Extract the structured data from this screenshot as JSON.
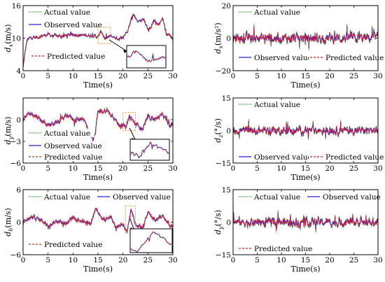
{
  "figure": {
    "legend_labels": {
      "actual": "Actual value",
      "observed": "Observed value",
      "predicted": "Predicted value"
    },
    "colors": {
      "actual": "#2e9a2e",
      "observed": "#2323d6",
      "predicted": "#e32222",
      "predicted_alt": "#b04010",
      "inset_box": "#f0a020",
      "shade": "#f6c6cf"
    }
  },
  "chart_data": [
    {
      "id": "dx",
      "type": "line",
      "ylabel": "d_x(m/s)",
      "xlabel": "Time(s)",
      "xlim": [
        0,
        30
      ],
      "ylim": [
        4,
        16
      ],
      "xticks": [
        0,
        5,
        10,
        15,
        20,
        25,
        30
      ],
      "yticks": [
        4,
        10,
        16
      ],
      "base": [
        [
          0,
          4.6
        ],
        [
          0.4,
          7.5
        ],
        [
          0.8,
          9.6
        ],
        [
          1.5,
          10.1
        ],
        [
          3,
          10.2
        ],
        [
          5,
          10.7
        ],
        [
          6,
          10.4
        ],
        [
          8,
          10.4
        ],
        [
          10,
          10.7
        ],
        [
          12,
          10.5
        ],
        [
          14,
          10.5
        ],
        [
          15,
          10.2
        ],
        [
          15.7,
          11.3
        ],
        [
          16.4,
          9.8
        ],
        [
          17.5,
          10.4
        ],
        [
          19,
          9.9
        ],
        [
          20,
          10.1
        ],
        [
          21,
          11.6
        ],
        [
          22,
          14.5
        ],
        [
          23,
          13.1
        ],
        [
          24.2,
          13.5
        ],
        [
          25.2,
          11.4
        ],
        [
          26.3,
          13.3
        ],
        [
          27,
          12.4
        ],
        [
          28,
          13.6
        ],
        [
          28.7,
          10.5
        ],
        [
          29.4,
          10.9
        ],
        [
          30,
          9.6
        ]
      ],
      "noise": 0.45,
      "inset": {
        "zoom_x": [
          15,
          17.5
        ],
        "zoom_y": [
          9,
          12
        ]
      },
      "shaded": false
    },
    {
      "id": "az",
      "type": "line",
      "ylabel": "d_x(m/s²)",
      "xlabel": "Time(s)",
      "xlim": [
        0,
        30
      ],
      "ylim": [
        -20,
        20
      ],
      "xticks": [
        0,
        5,
        10,
        15,
        20,
        25,
        30
      ],
      "yticks": [
        -20,
        0,
        20
      ],
      "base": [
        [
          0,
          0
        ],
        [
          30,
          0
        ]
      ],
      "noise": 4.5,
      "inset": null,
      "shaded": false
    },
    {
      "id": "dy",
      "type": "line",
      "ylabel": "d_y(m/s)",
      "xlabel": "Time(s)",
      "xlim": [
        0,
        30
      ],
      "ylim": [
        -6,
        3
      ],
      "xticks": [
        0,
        5,
        10,
        15,
        20,
        25,
        30
      ],
      "yticks": [
        -6,
        -3,
        0
      ],
      "base": [
        [
          0,
          0.3
        ],
        [
          1.5,
          0.8
        ],
        [
          3,
          0.2
        ],
        [
          5,
          -0.8
        ],
        [
          7,
          -0.3
        ],
        [
          9,
          0.7
        ],
        [
          10.5,
          -0.2
        ],
        [
          12,
          0.3
        ],
        [
          13,
          -1.3
        ],
        [
          14,
          -2.8
        ],
        [
          14.5,
          -1.5
        ],
        [
          15,
          1.1
        ],
        [
          16.5,
          1.2
        ],
        [
          18,
          0.6
        ],
        [
          19,
          -0.6
        ],
        [
          20.5,
          -1.0
        ],
        [
          21.3,
          0.5
        ],
        [
          22.5,
          -0.6
        ],
        [
          24,
          -1.3
        ],
        [
          25,
          0.4
        ],
        [
          26.5,
          0.1
        ],
        [
          28,
          0.7
        ],
        [
          29.5,
          -1.0
        ],
        [
          30,
          -0.6
        ]
      ],
      "noise": 0.45,
      "inset": {
        "zoom_x": [
          20,
          22.5
        ],
        "zoom_y": [
          -1.5,
          1
        ]
      },
      "shaded": true
    },
    {
      "id": "rz",
      "type": "line",
      "ylabel": "d_z(°/s)",
      "xlabel": "Time(s)",
      "xlim": [
        0,
        30
      ],
      "ylim": [
        -15,
        15
      ],
      "xticks": [
        0,
        5,
        10,
        15,
        20,
        25,
        30
      ],
      "yticks": [
        -15,
        0,
        15
      ],
      "base": [
        [
          0,
          0
        ],
        [
          30,
          0
        ]
      ],
      "noise": 2.8,
      "inset": null,
      "shaded": false
    },
    {
      "id": "dh",
      "type": "line",
      "ylabel": "d_h(m/s)",
      "xlabel": "Time(s)",
      "xlim": [
        0,
        30
      ],
      "ylim": [
        -6,
        6
      ],
      "xticks": [
        0,
        5,
        10,
        15,
        20,
        25,
        30
      ],
      "yticks": [
        -6,
        0,
        6
      ],
      "base": [
        [
          0,
          0.1
        ],
        [
          2,
          1.0
        ],
        [
          4,
          0.2
        ],
        [
          5,
          -0.6
        ],
        [
          7,
          0.3
        ],
        [
          8.5,
          -0.4
        ],
        [
          10,
          0.8
        ],
        [
          12,
          0.2
        ],
        [
          13.5,
          -0.3
        ],
        [
          14.6,
          2.7
        ],
        [
          15.5,
          0.8
        ],
        [
          16.5,
          0.5
        ],
        [
          17.5,
          1.0
        ],
        [
          18.5,
          -0.9
        ],
        [
          20,
          -0.3
        ],
        [
          20.8,
          -1.9
        ],
        [
          21.6,
          2.6
        ],
        [
          22.5,
          -0.4
        ],
        [
          24,
          -1.0
        ],
        [
          25,
          1.8
        ],
        [
          26.5,
          0.3
        ],
        [
          28,
          1.2
        ],
        [
          29.5,
          -1.0
        ],
        [
          30,
          -0.6
        ]
      ],
      "noise": 0.55,
      "inset": {
        "zoom_x": [
          20.5,
          22.5
        ],
        "zoom_y": [
          -2,
          3
        ]
      },
      "shaded": true
    },
    {
      "id": "ry",
      "type": "line",
      "ylabel": "d_y(°/s)",
      "xlabel": "Time(s)",
      "xlim": [
        0,
        30
      ],
      "ylim": [
        -15,
        15
      ],
      "xticks": [
        0,
        5,
        10,
        15,
        20,
        25,
        30
      ],
      "yticks": [
        -15,
        0,
        15
      ],
      "base": [
        [
          0,
          0
        ],
        [
          30,
          0
        ]
      ],
      "noise": 3.0,
      "inset": null,
      "shaded": false
    }
  ]
}
